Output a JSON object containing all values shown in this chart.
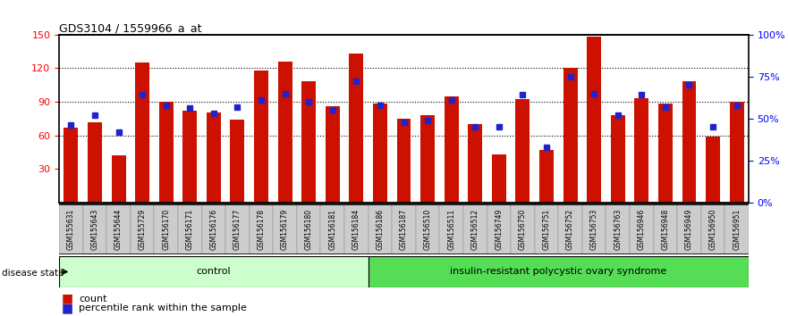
{
  "title": "GDS3104 / 1559966_a_at",
  "samples": [
    "GSM155631",
    "GSM155643",
    "GSM155644",
    "GSM155729",
    "GSM156170",
    "GSM156171",
    "GSM156176",
    "GSM156177",
    "GSM156178",
    "GSM156179",
    "GSM156180",
    "GSM156181",
    "GSM156184",
    "GSM156186",
    "GSM156187",
    "GSM156510",
    "GSM156511",
    "GSM156512",
    "GSM156749",
    "GSM156750",
    "GSM156751",
    "GSM156752",
    "GSM156753",
    "GSM156763",
    "GSM156946",
    "GSM156948",
    "GSM156949",
    "GSM156950",
    "GSM156951"
  ],
  "counts": [
    67,
    72,
    42,
    125,
    90,
    82,
    80,
    74,
    118,
    126,
    108,
    86,
    133,
    88,
    75,
    78,
    95,
    70,
    43,
    92,
    47,
    120,
    148,
    78,
    93,
    88,
    108,
    59,
    90
  ],
  "percentile_pct": [
    46,
    52,
    42,
    64,
    58,
    56,
    53,
    57,
    61,
    65,
    60,
    55,
    72,
    58,
    48,
    49,
    61,
    45,
    45,
    64,
    33,
    75,
    65,
    52,
    64,
    57,
    70,
    45,
    58
  ],
  "group1_label": "control",
  "group2_label": "insulin-resistant polycystic ovary syndrome",
  "group1_count": 13,
  "group2_count": 16,
  "disease_state_label": "disease state",
  "bar_color": "#cc1100",
  "percentile_color": "#2222cc",
  "group1_bg": "#ccffcc",
  "group2_bg": "#55dd55",
  "label_bg": "#cccccc"
}
